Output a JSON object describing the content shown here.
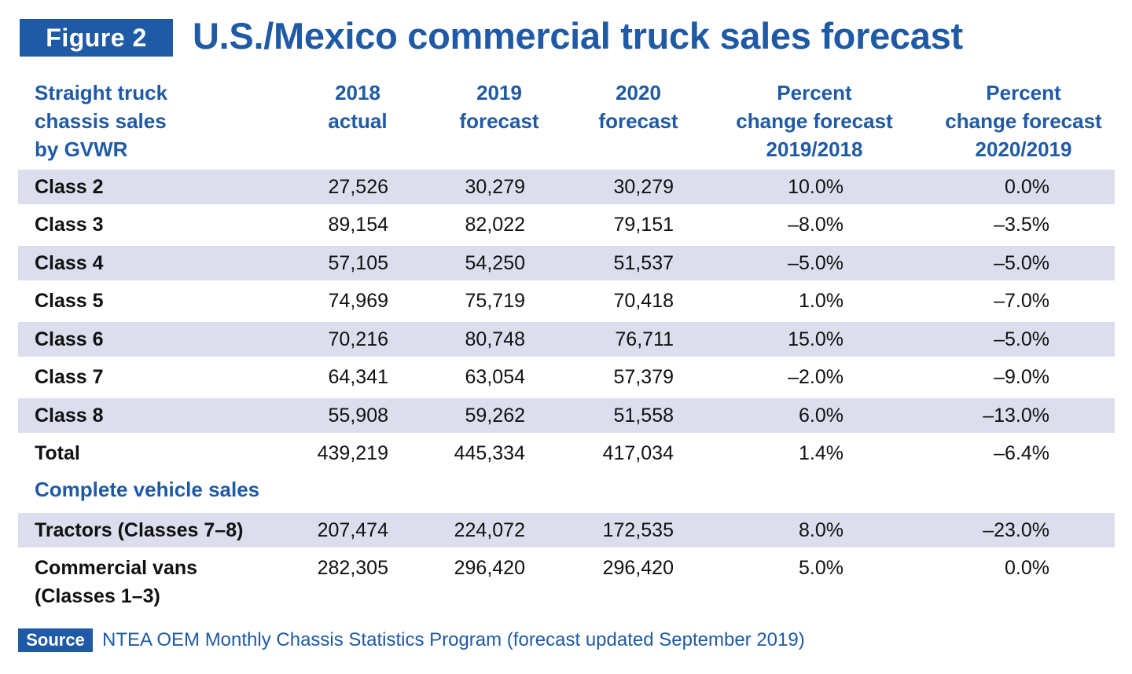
{
  "figure_label": "Figure 2",
  "title": "U.S./Mexico commercial truck sales forecast",
  "headers": {
    "category": "Straight truck\nchassis sales\nby GVWR",
    "y2018": "2018\nactual",
    "y2019": "2019\nforecast",
    "y2020": "2020\nforecast",
    "pct_2019_2018": "Percent\nchange forecast\n2019/2018",
    "pct_2020_2019": "Percent\nchange forecast\n2020/2019"
  },
  "rows": [
    {
      "label": "Class 2",
      "y2018": "27,526",
      "y2019": "30,279",
      "y2020": "30,279",
      "pct1": "10.0%",
      "pct2": "0.0%"
    },
    {
      "label": "Class 3",
      "y2018": "89,154",
      "y2019": "82,022",
      "y2020": "79,151",
      "pct1": "–8.0%",
      "pct2": "–3.5%"
    },
    {
      "label": "Class 4",
      "y2018": "57,105",
      "y2019": "54,250",
      "y2020": "51,537",
      "pct1": "–5.0%",
      "pct2": "–5.0%"
    },
    {
      "label": "Class 5",
      "y2018": "74,969",
      "y2019": "75,719",
      "y2020": "70,418",
      "pct1": "1.0%",
      "pct2": "–7.0%"
    },
    {
      "label": "Class 6",
      "y2018": "70,216",
      "y2019": "80,748",
      "y2020": "76,711",
      "pct1": "15.0%",
      "pct2": "–5.0%"
    },
    {
      "label": "Class 7",
      "y2018": "64,341",
      "y2019": "63,054",
      "y2020": "57,379",
      "pct1": "–2.0%",
      "pct2": "–9.0%"
    },
    {
      "label": "Class 8",
      "y2018": "55,908",
      "y2019": "59,262",
      "y2020": "51,558",
      "pct1": "6.0%",
      "pct2": "–13.0%"
    },
    {
      "label": "Total",
      "y2018": "439,219",
      "y2019": "445,334",
      "y2020": "417,034",
      "pct1": "1.4%",
      "pct2": "–6.4%"
    }
  ],
  "section2_label": "Complete vehicle sales",
  "rows2": [
    {
      "label": "Tractors (Classes 7–8)",
      "y2018": "207,474",
      "y2019": "224,072",
      "y2020": "172,535",
      "pct1": "8.0%",
      "pct2": "–23.0%"
    },
    {
      "label": "Commercial vans\n(Classes 1–3)",
      "y2018": "282,305",
      "y2019": "296,420",
      "y2020": "296,420",
      "pct1": "5.0%",
      "pct2": "0.0%"
    }
  ],
  "source_label": "Source",
  "source_text": "NTEA OEM Monthly Chassis Statistics Program (forecast updated September 2019)",
  "colors": {
    "brand_blue": "#1f5aa6",
    "band": "#dcdeed",
    "text": "#111111"
  }
}
